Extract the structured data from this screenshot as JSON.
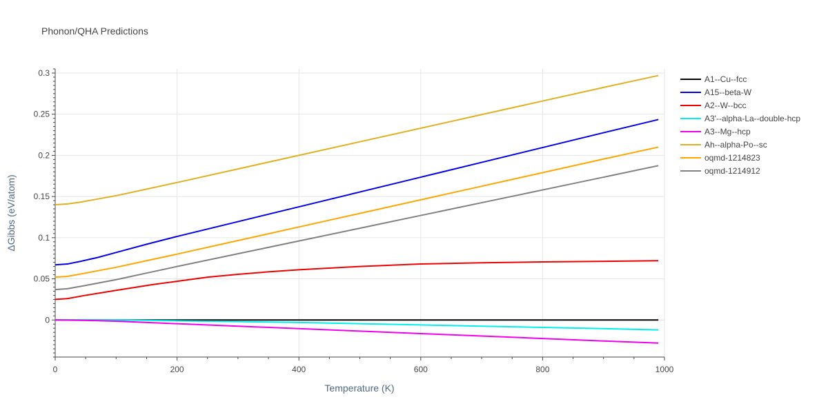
{
  "chart_data": {
    "type": "line",
    "title": "Phonon/QHA Predictions",
    "xlabel": "Temperature (K)",
    "ylabel": "ΔGibbs (eV/atom)",
    "xlim": [
      0,
      1000
    ],
    "ylim": [
      -0.045,
      0.305
    ],
    "x_ticks": [
      0,
      200,
      400,
      600,
      800,
      1000
    ],
    "x_tick_labels": [
      "0",
      "200",
      "400",
      "600",
      "800",
      "1000"
    ],
    "y_ticks": [
      0,
      0.05,
      0.1,
      0.15,
      0.2,
      0.25,
      0.3
    ],
    "y_tick_labels": [
      "0",
      "0.05",
      "0.1",
      "0.15",
      "0.2",
      "0.25",
      "0.3"
    ],
    "grid": true,
    "legend_position": "right",
    "series": [
      {
        "name": "A1--Cu--fcc",
        "color": "#000000",
        "x": [
          0,
          100,
          200,
          300,
          400,
          500,
          600,
          700,
          800,
          900,
          990
        ],
        "y": [
          0,
          0,
          0,
          0,
          0,
          0,
          0,
          0,
          0,
          0,
          0
        ]
      },
      {
        "name": "A15--beta-W",
        "color": "#0000ee",
        "x": [
          0,
          20,
          40,
          70,
          100,
          150,
          200,
          300,
          400,
          500,
          600,
          700,
          800,
          900,
          990
        ],
        "y": [
          0.067,
          0.068,
          0.071,
          0.076,
          0.082,
          0.092,
          0.1015,
          0.1195,
          0.1375,
          0.1555,
          0.1735,
          0.1915,
          0.2095,
          0.2275,
          0.2435
        ]
      },
      {
        "name": "A2--W--bcc",
        "color": "#ee0000",
        "x": [
          0,
          20,
          50,
          100,
          160,
          200,
          250,
          300,
          350,
          400,
          500,
          600,
          700,
          800,
          990
        ],
        "y": [
          0.025,
          0.026,
          0.03,
          0.036,
          0.043,
          0.047,
          0.052,
          0.0555,
          0.0585,
          0.061,
          0.065,
          0.068,
          0.0695,
          0.0705,
          0.072
        ]
      },
      {
        "name": "A3'--alpha-La--double-hcp",
        "color": "#00eeee",
        "x": [
          0,
          100,
          200,
          300,
          400,
          500,
          600,
          700,
          800,
          900,
          990
        ],
        "y": [
          0,
          0,
          -0.001,
          -0.002,
          -0.003,
          -0.0045,
          -0.006,
          -0.0075,
          -0.009,
          -0.0105,
          -0.012
        ]
      },
      {
        "name": "A3--Mg--hcp",
        "color": "#ee00ee",
        "x": [
          0,
          50,
          100,
          200,
          300,
          400,
          500,
          600,
          700,
          800,
          900,
          990
        ],
        "y": [
          0,
          -0.0005,
          -0.0015,
          -0.0045,
          -0.0075,
          -0.0105,
          -0.0135,
          -0.0165,
          -0.0195,
          -0.0225,
          -0.0255,
          -0.028
        ]
      },
      {
        "name": "Ah--alpha-Po--sc",
        "color": "#e0b020",
        "x": [
          0,
          20,
          40,
          70,
          100,
          150,
          200,
          300,
          400,
          500,
          600,
          700,
          800,
          900,
          990
        ],
        "y": [
          0.14,
          0.141,
          0.143,
          0.147,
          0.151,
          0.159,
          0.167,
          0.1835,
          0.2,
          0.2165,
          0.233,
          0.2495,
          0.266,
          0.2825,
          0.297
        ]
      },
      {
        "name": "oqmd-1214823",
        "color": "#ffa500",
        "x": [
          0,
          20,
          50,
          100,
          150,
          200,
          300,
          400,
          500,
          600,
          700,
          800,
          900,
          990
        ],
        "y": [
          0.052,
          0.053,
          0.057,
          0.064,
          0.072,
          0.08,
          0.0965,
          0.113,
          0.1295,
          0.146,
          0.1625,
          0.179,
          0.1955,
          0.21
        ]
      },
      {
        "name": "oqmd-1214912",
        "color": "#808080",
        "x": [
          0,
          20,
          50,
          100,
          150,
          200,
          300,
          400,
          500,
          600,
          700,
          800,
          900,
          990
        ],
        "y": [
          0.037,
          0.038,
          0.042,
          0.049,
          0.057,
          0.065,
          0.0805,
          0.096,
          0.1115,
          0.127,
          0.1425,
          0.158,
          0.1735,
          0.1875
        ]
      }
    ]
  }
}
